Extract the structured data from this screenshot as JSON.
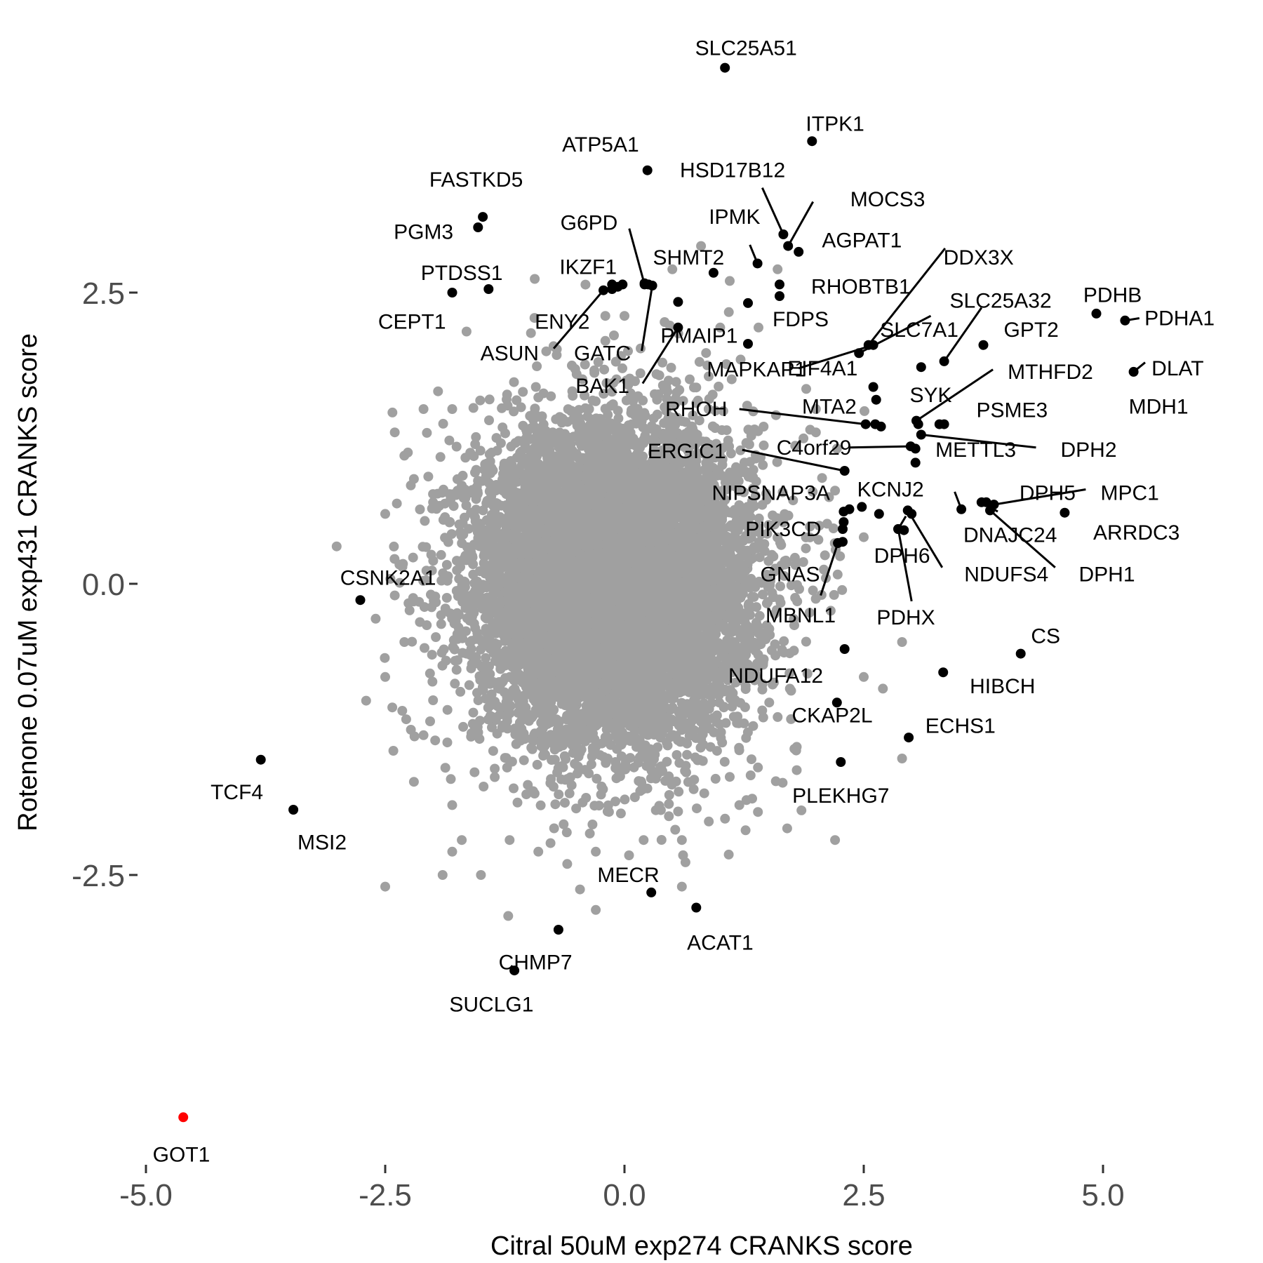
{
  "chart_data": {
    "type": "scatter",
    "title": "",
    "xlabel": "Citral 50uM exp274 CRANKS score",
    "ylabel": "Rotenone 0.07uM exp431 CRANKS score",
    "xlim": [
      -5.0,
      6.1
    ],
    "ylim": [
      -4.9,
      4.5
    ],
    "xticks": [
      -5.0,
      -2.5,
      0.0,
      2.5,
      5.0
    ],
    "yticks": [
      -2.5,
      0.0,
      2.5
    ],
    "xtick_labels": [
      "-5.0",
      "-2.5",
      "0.0",
      "2.5",
      "5.0"
    ],
    "ytick_labels": [
      "-2.5",
      "0.0",
      "2.5"
    ],
    "grid": false,
    "legend": "none",
    "colors": {
      "background": "#ffffff",
      "background_points": "#a0a0a0",
      "highlight": "#000000",
      "special": "#ff0000"
    },
    "background_cloud": {
      "n": 9000,
      "center": [
        -0.1,
        0.0
      ],
      "sd": [
        0.72,
        0.68
      ]
    },
    "background_points": [
      [
        0.5,
        2.7
      ],
      [
        1.0,
        2.2
      ],
      [
        1.4,
        2.2
      ],
      [
        0.0,
        2.3
      ],
      [
        -0.5,
        1.8
      ],
      [
        -0.9,
        1.6
      ],
      [
        2.0,
        1.5
      ],
      [
        -1.8,
        1.5
      ],
      [
        -2.1,
        1.5
      ],
      [
        -2.4,
        1.3
      ],
      [
        -2.3,
        1.1
      ],
      [
        -2.2,
        0.9
      ],
      [
        -2.0,
        0.7
      ],
      [
        -2.5,
        0.6
      ],
      [
        -2.4,
        -0.1
      ],
      [
        -2.6,
        -0.3
      ],
      [
        -2.3,
        -0.5
      ],
      [
        -2.5,
        -0.8
      ],
      [
        -2.0,
        -1.0
      ],
      [
        -2.1,
        -1.3
      ],
      [
        -2.2,
        -1.7
      ],
      [
        -1.8,
        -1.9
      ],
      [
        -1.7,
        -2.2
      ],
      [
        -1.8,
        -2.3
      ],
      [
        -2.5,
        -2.6
      ],
      [
        -1.9,
        -2.5
      ],
      [
        -1.5,
        -2.5
      ],
      [
        -1.2,
        -2.2
      ],
      [
        -0.9,
        -2.3
      ],
      [
        -0.3,
        -2.3
      ],
      [
        0.2,
        -2.2
      ],
      [
        0.6,
        -2.2
      ],
      [
        -0.3,
        -2.8
      ],
      [
        0.6,
        -2.6
      ],
      [
        1.2,
        -1.9
      ],
      [
        1.7,
        -2.1
      ],
      [
        2.2,
        -2.2
      ],
      [
        1.8,
        -1.4
      ],
      [
        1.8,
        -1.6
      ],
      [
        2.5,
        -0.8
      ],
      [
        2.7,
        -0.9
      ],
      [
        2.9,
        -1.5
      ],
      [
        2.9,
        -0.5
      ],
      [
        2.5,
        0.4
      ],
      [
        2.2,
        0.8
      ],
      [
        2.0,
        1.3
      ],
      [
        1.6,
        2.7
      ],
      [
        1.1,
        2.6
      ],
      [
        0.8,
        2.9
      ],
      [
        -0.2,
        2.3
      ]
    ],
    "labeled_points": [
      {
        "label": "SLC25A51",
        "x": 1.05,
        "y": 4.43,
        "lx": 1.27,
        "ly": 4.6,
        "anchor": "middle",
        "color": "#000000"
      },
      {
        "label": "ITPK1",
        "x": 1.96,
        "y": 3.8,
        "lx": 2.2,
        "ly": 3.95,
        "anchor": "middle",
        "color": "#000000"
      },
      {
        "label": "ATP5A1",
        "x": 0.24,
        "y": 3.55,
        "lx": -0.25,
        "ly": 3.77,
        "anchor": "middle",
        "color": "#000000"
      },
      {
        "label": "HSD17B12",
        "x": 1.66,
        "y": 3.0,
        "lx": 1.13,
        "ly": 3.55,
        "anchor": "middle",
        "color": "#000000",
        "leader": [
          1.44,
          3.4
        ]
      },
      {
        "label": "MOCS3",
        "x": 1.71,
        "y": 2.9,
        "lx": 2.75,
        "ly": 3.3,
        "anchor": "middle",
        "color": "#000000",
        "leader": [
          1.97,
          3.28
        ]
      },
      {
        "label": "FASTKD5",
        "x": -1.48,
        "y": 3.15,
        "lx": -1.55,
        "ly": 3.47,
        "anchor": "middle",
        "color": "#000000"
      },
      {
        "label": "G6PD",
        "x": 0.21,
        "y": 2.57,
        "lx": -0.37,
        "ly": 3.1,
        "anchor": "middle",
        "color": "#000000",
        "leader": [
          0.05,
          3.05
        ]
      },
      {
        "label": "IPMK",
        "x": 1.39,
        "y": 2.75,
        "lx": 1.15,
        "ly": 3.15,
        "anchor": "middle",
        "color": "#000000",
        "leader": [
          1.31,
          2.91
        ]
      },
      {
        "label": "PGM3",
        "x": -1.53,
        "y": 3.06,
        "lx": -2.1,
        "ly": 3.02,
        "anchor": "middle",
        "color": "#000000"
      },
      {
        "label": "AGPAT1",
        "x": 1.82,
        "y": 2.85,
        "lx": 2.48,
        "ly": 2.95,
        "anchor": "middle",
        "color": "#000000"
      },
      {
        "label": "DDX3X",
        "x": 2.55,
        "y": 2.05,
        "lx": 3.7,
        "ly": 2.8,
        "anchor": "middle",
        "color": "#000000",
        "leader": [
          3.35,
          2.88
        ]
      },
      {
        "label": "SHMT2",
        "x": 0.93,
        "y": 2.67,
        "lx": 0.67,
        "ly": 2.8,
        "anchor": "middle",
        "color": "#000000"
      },
      {
        "label": "PTDSS1",
        "x": -1.42,
        "y": 2.53,
        "lx": -1.7,
        "ly": 2.67,
        "anchor": "middle",
        "color": "#000000"
      },
      {
        "label": "IKZF1",
        "x": -0.13,
        "y": 2.53,
        "lx": -0.38,
        "ly": 2.72,
        "anchor": "middle",
        "color": "#000000"
      },
      {
        "label": "PDHB",
        "x": 4.93,
        "y": 2.32,
        "lx": 5.1,
        "ly": 2.48,
        "anchor": "middle",
        "color": "#000000"
      },
      {
        "label": "RHOBTB1",
        "x": 1.62,
        "y": 2.57,
        "lx": 2.47,
        "ly": 2.55,
        "anchor": "middle",
        "color": "#000000"
      },
      {
        "label": "SLC25A32",
        "x": 3.34,
        "y": 1.91,
        "lx": 3.93,
        "ly": 2.43,
        "anchor": "middle",
        "color": "#000000",
        "leader": [
          3.73,
          2.37
        ]
      },
      {
        "label": "ENY2",
        "x": -0.13,
        "y": 2.57,
        "lx": -0.65,
        "ly": 2.25,
        "anchor": "middle",
        "color": "#000000"
      },
      {
        "label": "CEPT1",
        "x": -1.8,
        "y": 2.5,
        "lx": -2.22,
        "ly": 2.25,
        "anchor": "middle",
        "color": "#000000"
      },
      {
        "label": "PDHA1",
        "x": 5.23,
        "y": 2.26,
        "lx": 5.8,
        "ly": 2.28,
        "anchor": "middle",
        "color": "#000000",
        "leader": [
          5.38,
          2.28
        ]
      },
      {
        "label": "FDPS",
        "x": 1.29,
        "y": 2.41,
        "lx": 1.84,
        "ly": 2.27,
        "anchor": "middle",
        "color": "#000000"
      },
      {
        "label": "GPT2",
        "x": 3.75,
        "y": 2.05,
        "lx": 4.25,
        "ly": 2.18,
        "anchor": "middle",
        "color": "#000000"
      },
      {
        "label": "SLC7A1",
        "x": 2.45,
        "y": 1.98,
        "lx": 3.08,
        "ly": 2.18,
        "anchor": "middle",
        "color": "#000000",
        "leader": [
          3.2,
          2.3
        ]
      },
      {
        "label": "PMAIP1",
        "x": 0.56,
        "y": 2.42,
        "lx": 0.78,
        "ly": 2.13,
        "anchor": "middle",
        "color": "#000000"
      },
      {
        "label": "ASUN",
        "x": -0.22,
        "y": 2.52,
        "lx": -1.2,
        "ly": 1.98,
        "anchor": "middle",
        "color": "#000000",
        "leader": [
          -0.74,
          2.02
        ]
      },
      {
        "label": "GATC",
        "x": 0.29,
        "y": 2.56,
        "lx": -0.23,
        "ly": 1.98,
        "anchor": "middle",
        "color": "#000000",
        "leader": [
          0.18,
          2.0
        ]
      },
      {
        "label": "DLAT",
        "x": 5.32,
        "y": 1.82,
        "lx": 5.78,
        "ly": 1.85,
        "anchor": "middle",
        "color": "#000000",
        "leader": [
          5.44,
          1.9
        ]
      },
      {
        "label": "MAPKAP1",
        "x": 3.1,
        "y": 1.86,
        "lx": 1.38,
        "ly": 1.84,
        "anchor": "middle",
        "color": "#000000"
      },
      {
        "label": "EIF4A1",
        "x": 2.6,
        "y": 2.05,
        "lx": 2.07,
        "ly": 1.85,
        "anchor": "middle",
        "color": "#000000",
        "leader": [
          1.82,
          1.85
        ]
      },
      {
        "label": "MTHFD2",
        "x": 3.05,
        "y": 1.4,
        "lx": 4.45,
        "ly": 1.82,
        "anchor": "middle",
        "color": "#000000",
        "leader": [
          3.85,
          1.84
        ]
      },
      {
        "label": "BAK1",
        "x": 0.56,
        "y": 2.2,
        "lx": -0.23,
        "ly": 1.7,
        "anchor": "middle",
        "color": "#000000",
        "leader": [
          0.19,
          1.72
        ]
      },
      {
        "label": "SYK",
        "x": 2.6,
        "y": 1.69,
        "lx": 3.2,
        "ly": 1.62,
        "anchor": "middle",
        "color": "#000000"
      },
      {
        "label": "MDH1",
        "x": 3.34,
        "y": 1.37,
        "lx": 5.58,
        "ly": 1.52,
        "anchor": "middle",
        "color": "#000000"
      },
      {
        "label": "MTA2",
        "x": 2.63,
        "y": 1.58,
        "lx": 2.14,
        "ly": 1.52,
        "anchor": "middle",
        "color": "#000000"
      },
      {
        "label": "RHOH",
        "x": 2.52,
        "y": 1.37,
        "lx": 0.75,
        "ly": 1.5,
        "anchor": "middle",
        "color": "#000000",
        "leader": [
          1.2,
          1.5
        ]
      },
      {
        "label": "PSME3",
        "x": 3.29,
        "y": 1.37,
        "lx": 4.05,
        "ly": 1.49,
        "anchor": "middle",
        "color": "#000000"
      },
      {
        "label": "C4orf29",
        "x": 2.99,
        "y": 1.18,
        "lx": 1.98,
        "ly": 1.17,
        "anchor": "middle",
        "color": "#000000",
        "leader": [
          2.35,
          1.17
        ]
      },
      {
        "label": "ERGIC1",
        "x": 2.3,
        "y": 0.97,
        "lx": 0.65,
        "ly": 1.14,
        "anchor": "middle",
        "color": "#000000",
        "leader": [
          1.23,
          1.15
        ]
      },
      {
        "label": "METTL3",
        "x": 3.04,
        "y": 1.04,
        "lx": 3.67,
        "ly": 1.15,
        "anchor": "middle",
        "color": "#000000"
      },
      {
        "label": "DPH2",
        "x": 3.1,
        "y": 1.28,
        "lx": 4.85,
        "ly": 1.15,
        "anchor": "middle",
        "color": "#000000",
        "leader": [
          4.3,
          1.17
        ]
      },
      {
        "label": "KCNJ2",
        "x": 2.48,
        "y": 0.66,
        "lx": 2.78,
        "ly": 0.81,
        "anchor": "middle",
        "color": "#000000"
      },
      {
        "label": "NIPSNAP3A",
        "x": 2.29,
        "y": 0.62,
        "lx": 1.53,
        "ly": 0.78,
        "anchor": "middle",
        "color": "#000000"
      },
      {
        "label": "DPH5",
        "x": 3.52,
        "y": 0.64,
        "lx": 4.42,
        "ly": 0.78,
        "anchor": "middle",
        "color": "#000000",
        "leader": [
          3.45,
          0.79
        ]
      },
      {
        "label": "MPC1",
        "x": 3.86,
        "y": 0.68,
        "lx": 5.28,
        "ly": 0.78,
        "anchor": "middle",
        "color": "#000000",
        "leader": [
          4.82,
          0.81
        ]
      },
      {
        "label": "DNAJC24",
        "x": 3.73,
        "y": 0.7,
        "lx": 4.03,
        "ly": 0.42,
        "anchor": "middle",
        "color": "#000000",
        "leader": [
          3.9,
          0.62
        ]
      },
      {
        "label": "PIK3CD",
        "x": 2.28,
        "y": 0.47,
        "lx": 1.66,
        "ly": 0.47,
        "anchor": "middle",
        "color": "#000000"
      },
      {
        "label": "ARRDC3",
        "x": 4.6,
        "y": 0.61,
        "lx": 5.35,
        "ly": 0.44,
        "anchor": "middle",
        "color": "#000000"
      },
      {
        "label": "DPH6",
        "x": 2.86,
        "y": 0.47,
        "lx": 2.9,
        "ly": 0.24,
        "anchor": "middle",
        "color": "#000000",
        "leader": [
          2.94,
          0.58
        ]
      },
      {
        "label": "GNAS",
        "x": 2.23,
        "y": 0.35,
        "lx": 1.73,
        "ly": 0.08,
        "anchor": "middle",
        "color": "#000000"
      },
      {
        "label": "NDUFS4",
        "x": 2.96,
        "y": 0.63,
        "lx": 3.99,
        "ly": 0.08,
        "anchor": "middle",
        "color": "#000000",
        "leader": [
          3.32,
          0.14
        ]
      },
      {
        "label": "DPH1",
        "x": 3.82,
        "y": 0.63,
        "lx": 5.04,
        "ly": 0.08,
        "anchor": "middle",
        "color": "#000000",
        "leader": [
          4.5,
          0.14
        ]
      },
      {
        "label": "MBNL1",
        "x": 2.23,
        "y": 0.35,
        "lx": 1.84,
        "ly": -0.27,
        "anchor": "middle",
        "color": "#000000",
        "leader": [
          2.05,
          -0.1
        ]
      },
      {
        "label": "PDHX",
        "x": 2.86,
        "y": 0.47,
        "lx": 2.94,
        "ly": -0.29,
        "anchor": "middle",
        "color": "#000000",
        "leader": [
          3.0,
          -0.15
        ]
      },
      {
        "label": "CSNK2A1",
        "x": -2.76,
        "y": -0.14,
        "lx": -2.47,
        "ly": 0.05,
        "anchor": "middle",
        "color": "#000000"
      },
      {
        "label": "CS",
        "x": 4.14,
        "y": -0.6,
        "lx": 4.4,
        "ly": -0.45,
        "anchor": "middle",
        "color": "#000000"
      },
      {
        "label": "NDUFA12",
        "x": 2.3,
        "y": -0.56,
        "lx": 1.58,
        "ly": -0.79,
        "anchor": "middle",
        "color": "#000000"
      },
      {
        "label": "HIBCH",
        "x": 3.33,
        "y": -0.76,
        "lx": 3.95,
        "ly": -0.88,
        "anchor": "middle",
        "color": "#000000"
      },
      {
        "label": "CKAP2L",
        "x": 2.22,
        "y": -1.02,
        "lx": 2.17,
        "ly": -1.13,
        "anchor": "middle",
        "color": "#000000"
      },
      {
        "label": "ECHS1",
        "x": 2.97,
        "y": -1.32,
        "lx": 3.51,
        "ly": -1.22,
        "anchor": "middle",
        "color": "#000000"
      },
      {
        "label": "TCF4",
        "x": -3.8,
        "y": -1.51,
        "lx": -4.05,
        "ly": -1.79,
        "anchor": "middle",
        "color": "#000000"
      },
      {
        "label": "PLEKHG7",
        "x": 2.26,
        "y": -1.53,
        "lx": 2.26,
        "ly": -1.82,
        "anchor": "middle",
        "color": "#000000"
      },
      {
        "label": "MSI2",
        "x": -3.46,
        "y": -1.94,
        "lx": -3.16,
        "ly": -2.22,
        "anchor": "middle",
        "color": "#000000"
      },
      {
        "label": "MECR",
        "x": 0.28,
        "y": -2.65,
        "lx": 0.04,
        "ly": -2.5,
        "anchor": "middle",
        "color": "#000000"
      },
      {
        "label": "ACAT1",
        "x": 0.75,
        "y": -2.78,
        "lx": 1.0,
        "ly": -3.08,
        "anchor": "middle",
        "color": "#000000"
      },
      {
        "label": "CHMP7",
        "x": -0.69,
        "y": -2.97,
        "lx": -0.93,
        "ly": -3.25,
        "anchor": "middle",
        "color": "#000000"
      },
      {
        "label": "SUCLG1",
        "x": -1.15,
        "y": -3.32,
        "lx": -1.39,
        "ly": -3.61,
        "anchor": "middle",
        "color": "#000000"
      },
      {
        "label": "GOT1",
        "x": -4.61,
        "y": -4.58,
        "lx": -4.63,
        "ly": -4.9,
        "anchor": "middle",
        "color": "#ff0000"
      }
    ],
    "extra_points": [
      [
        -0.02,
        2.57
      ],
      [
        -0.07,
        2.55
      ],
      [
        1.29,
        2.06
      ],
      [
        3.07,
        1.37
      ],
      [
        2.68,
        1.35
      ],
      [
        3.04,
        1.16
      ],
      [
        2.28,
        0.36
      ],
      [
        2.29,
        0.53
      ],
      [
        2.35,
        0.64
      ],
      [
        3.78,
        0.7
      ],
      [
        3.0,
        0.6
      ],
      [
        2.66,
        0.6
      ],
      [
        2.92,
        0.46
      ],
      [
        1.62,
        2.47
      ],
      [
        0.21,
        2.58
      ],
      [
        0.25,
        2.57
      ],
      [
        2.62,
        1.37
      ]
    ]
  }
}
